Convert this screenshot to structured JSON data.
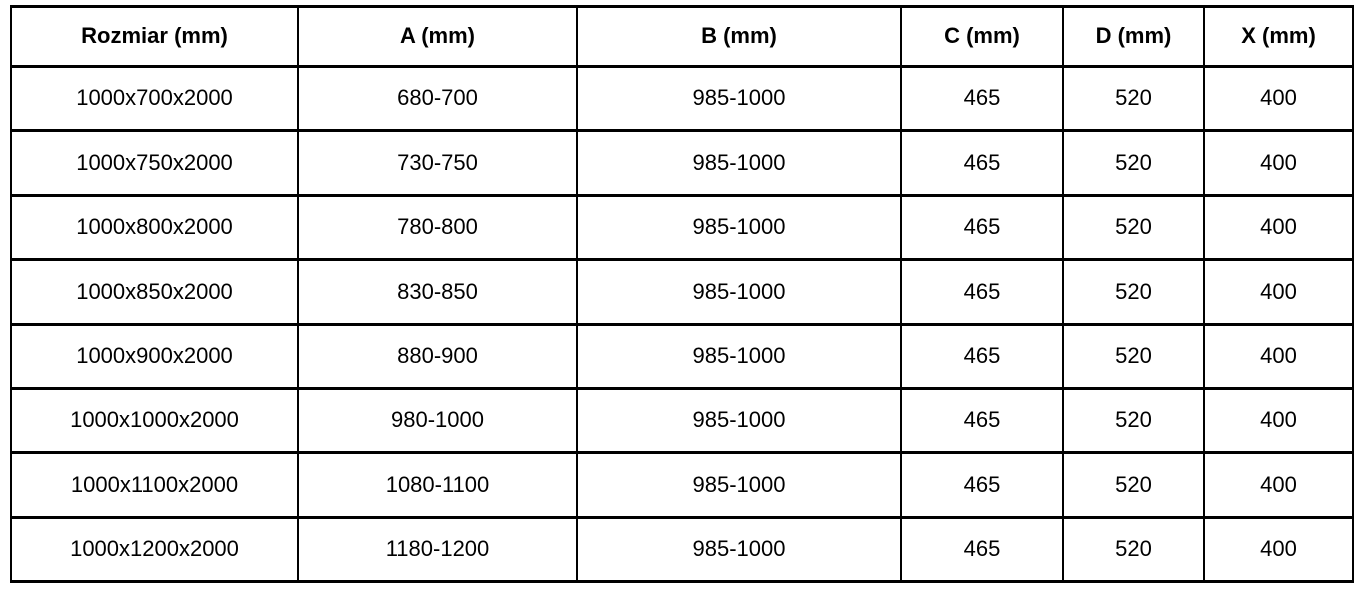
{
  "table": {
    "columns": [
      "Rozmiar (mm)",
      "A (mm)",
      "B (mm)",
      "C (mm)",
      "D (mm)",
      "X (mm)"
    ],
    "rows": [
      [
        "1000x700x2000",
        "680-700",
        "985-1000",
        "465",
        "520",
        "400"
      ],
      [
        "1000x750x2000",
        "730-750",
        "985-1000",
        "465",
        "520",
        "400"
      ],
      [
        "1000x800x2000",
        "780-800",
        "985-1000",
        "465",
        "520",
        "400"
      ],
      [
        "1000x850x2000",
        "830-850",
        "985-1000",
        "465",
        "520",
        "400"
      ],
      [
        "1000x900x2000",
        "880-900",
        "985-1000",
        "465",
        "520",
        "400"
      ],
      [
        "1000x1000x2000",
        "980-1000",
        "985-1000",
        "465",
        "520",
        "400"
      ],
      [
        "1000x1100x2000",
        "1080-1100",
        "985-1000",
        "465",
        "520",
        "400"
      ],
      [
        "1000x1200x2000",
        "1180-1200",
        "985-1000",
        "465",
        "520",
        "400"
      ]
    ],
    "colors": {
      "border": "#000000",
      "text": "#000000",
      "background": "#ffffff"
    }
  }
}
